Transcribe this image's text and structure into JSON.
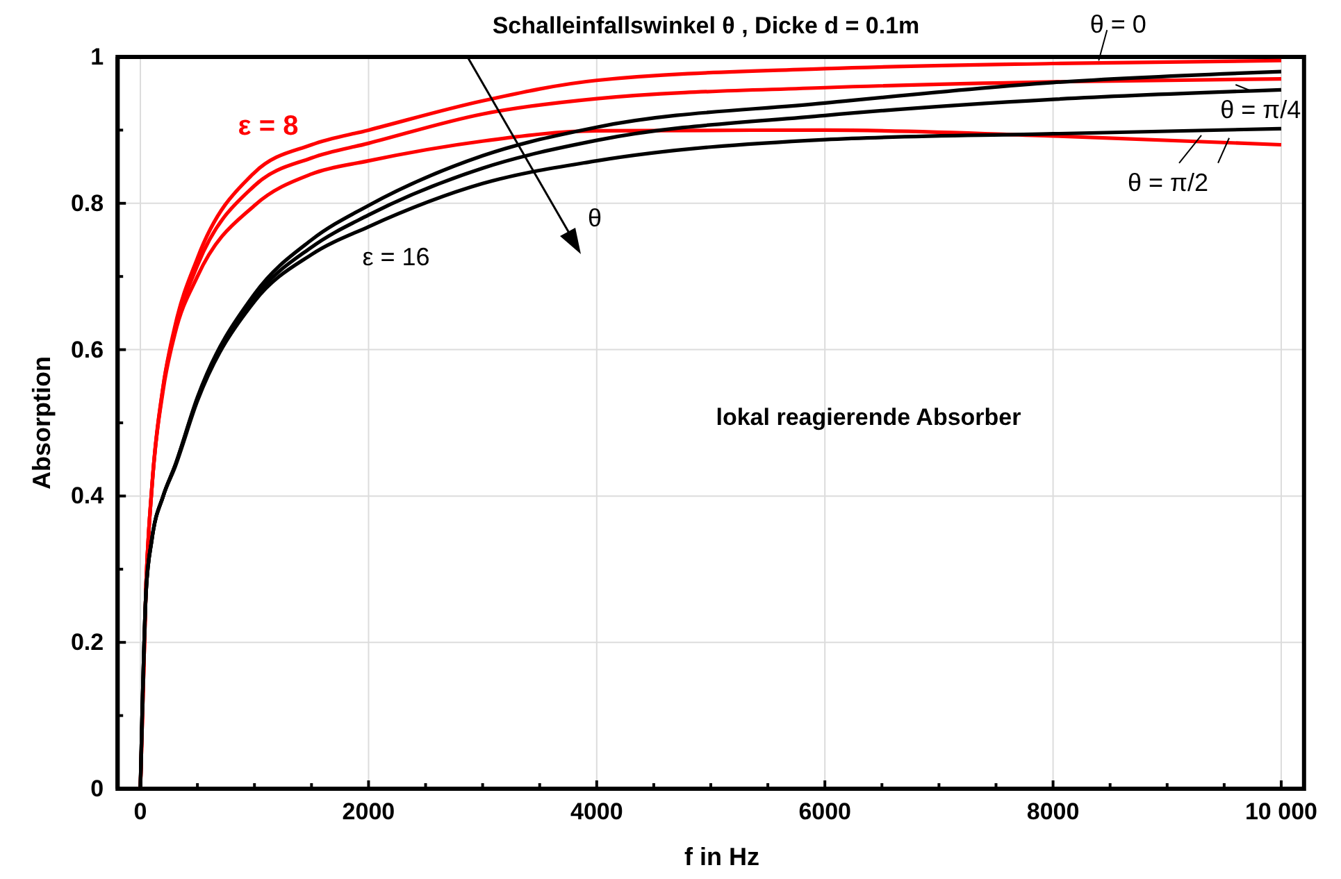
{
  "chart_data": {
    "type": "line",
    "title": "Schalleinfallswinkel θ , Dicke d = 0.1m",
    "xlabel": "f in Hz",
    "ylabel": "Absorption",
    "x": [
      0,
      50,
      100,
      200,
      300,
      500,
      1000,
      1500,
      2000,
      3000,
      4000,
      6000,
      8000,
      10000
    ],
    "series": [
      {
        "color": "#ff0000",
        "values": [
          0,
          0.28,
          0.41,
          0.55,
          0.63,
          0.725,
          0.842,
          0.88,
          0.9,
          0.94,
          0.968,
          0.984,
          0.991,
          0.995
        ]
      },
      {
        "color": "#ff0000",
        "values": [
          0,
          0.28,
          0.41,
          0.55,
          0.625,
          0.715,
          0.824,
          0.862,
          0.882,
          0.922,
          0.943,
          0.958,
          0.966,
          0.97
        ]
      },
      {
        "color": "#ff0000",
        "values": [
          0,
          0.28,
          0.41,
          0.545,
          0.62,
          0.7,
          0.797,
          0.84,
          0.858,
          0.885,
          0.899,
          0.9,
          0.892,
          0.88
        ]
      },
      {
        "color": "#000000",
        "values": [
          0,
          0.27,
          0.34,
          0.4,
          0.44,
          0.535,
          0.676,
          0.75,
          0.797,
          0.865,
          0.904,
          0.937,
          0.965,
          0.98
        ]
      },
      {
        "color": "#000000",
        "values": [
          0,
          0.27,
          0.34,
          0.4,
          0.44,
          0.533,
          0.671,
          0.74,
          0.784,
          0.848,
          0.886,
          0.92,
          0.942,
          0.955
        ]
      },
      {
        "color": "#000000",
        "values": [
          0,
          0.27,
          0.34,
          0.4,
          0.438,
          0.53,
          0.666,
          0.73,
          0.768,
          0.827,
          0.858,
          0.887,
          0.895,
          0.902
        ]
      }
    ],
    "xlim": [
      -200,
      10200
    ],
    "ylim": [
      0,
      1
    ],
    "xticks": [
      0,
      {
        "value": 500,
        "label": null
      },
      {
        "value": 1000,
        "label": null
      },
      {
        "value": 1500,
        "label": null
      },
      2000,
      {
        "value": 2500,
        "label": null
      },
      {
        "value": 3000,
        "label": null
      },
      {
        "value": 3500,
        "label": null
      },
      4000,
      {
        "value": 4500,
        "label": null
      },
      {
        "value": 5000,
        "label": null
      },
      {
        "value": 5500,
        "label": null
      },
      6000,
      {
        "value": 6500,
        "label": null
      },
      {
        "value": 7000,
        "label": null
      },
      {
        "value": 7500,
        "label": null
      },
      8000,
      {
        "value": 8500,
        "label": null
      },
      {
        "value": 9000,
        "label": null
      },
      {
        "value": 9500,
        "label": null
      },
      {
        "value": 10000,
        "label": "10 000"
      }
    ],
    "yticks": [
      0,
      {
        "value": 0.1,
        "label": null
      },
      0.2,
      {
        "value": 0.3,
        "label": null
      },
      0.4,
      {
        "value": 0.5,
        "label": null
      },
      0.6,
      {
        "value": 0.7,
        "label": null
      },
      0.8,
      {
        "value": 0.9,
        "label": null
      },
      1.0
    ],
    "grid": true,
    "marker": "none",
    "line_style": "solid",
    "annotations": [
      "ε = 8",
      "ε = 16",
      "θ",
      {
        "text": "θ = 0",
        "x": 8400,
        "y": 0.995
      },
      {
        "text": "θ = π/4",
        "x": 9600,
        "y": 0.962
      },
      {
        "text": "θ = π/2",
        "x": 9300,
        "y": 0.893
      },
      "lokal reagierende Absorber"
    ]
  }
}
